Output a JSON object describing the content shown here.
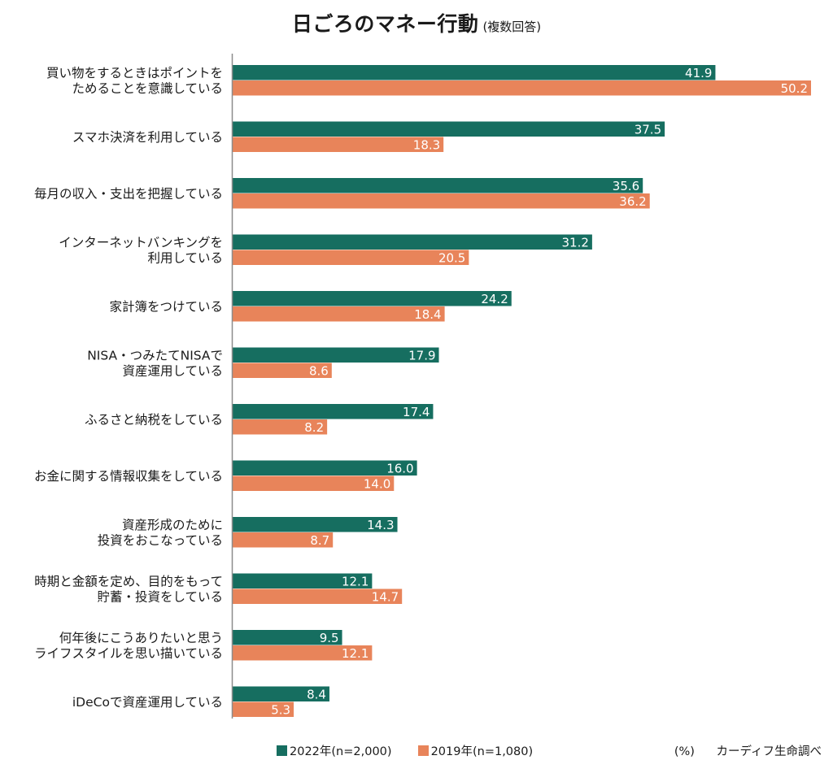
{
  "chart_data": {
    "type": "bar",
    "orientation": "horizontal",
    "title": "日ごろのマネー行動",
    "subtitle": "(複数回答)",
    "xlabel": "",
    "ylabel": "",
    "unit": "(%)",
    "source": "カーディフ生命調べ",
    "xlim": [
      0,
      50.2
    ],
    "grid": false,
    "legend_position": "bottom",
    "categories": [
      [
        "買い物をするときはポイントを",
        "ためることを意識している"
      ],
      [
        "スマホ決済を利用している"
      ],
      [
        "毎月の収入・支出を把握している"
      ],
      [
        "インターネットバンキングを",
        "利用している"
      ],
      [
        "家計簿をつけている"
      ],
      [
        "NISA・つみたてNISAで",
        "資産運用している"
      ],
      [
        "ふるさと納税をしている"
      ],
      [
        "お金に関する情報収集をしている"
      ],
      [
        "資産形成のために",
        "投資をおこなっている"
      ],
      [
        "時期と金額を定め、目的をもって",
        "貯蓄・投資をしている"
      ],
      [
        "何年後にこうありたいと思う",
        "ライフスタイルを思い描いている"
      ],
      [
        "iDeCoで資産運用している"
      ]
    ],
    "series": [
      {
        "name": "2022年(n=2,000)",
        "color": "#166e60",
        "values": [
          41.9,
          37.5,
          35.6,
          31.2,
          24.2,
          17.9,
          17.4,
          16.0,
          14.3,
          12.1,
          9.5,
          8.4
        ]
      },
      {
        "name": "2019年(n=1,080)",
        "color": "#e8845a",
        "values": [
          50.2,
          18.3,
          36.2,
          20.5,
          18.4,
          8.6,
          8.2,
          14.0,
          8.7,
          14.7,
          12.1,
          5.3
        ]
      }
    ]
  }
}
